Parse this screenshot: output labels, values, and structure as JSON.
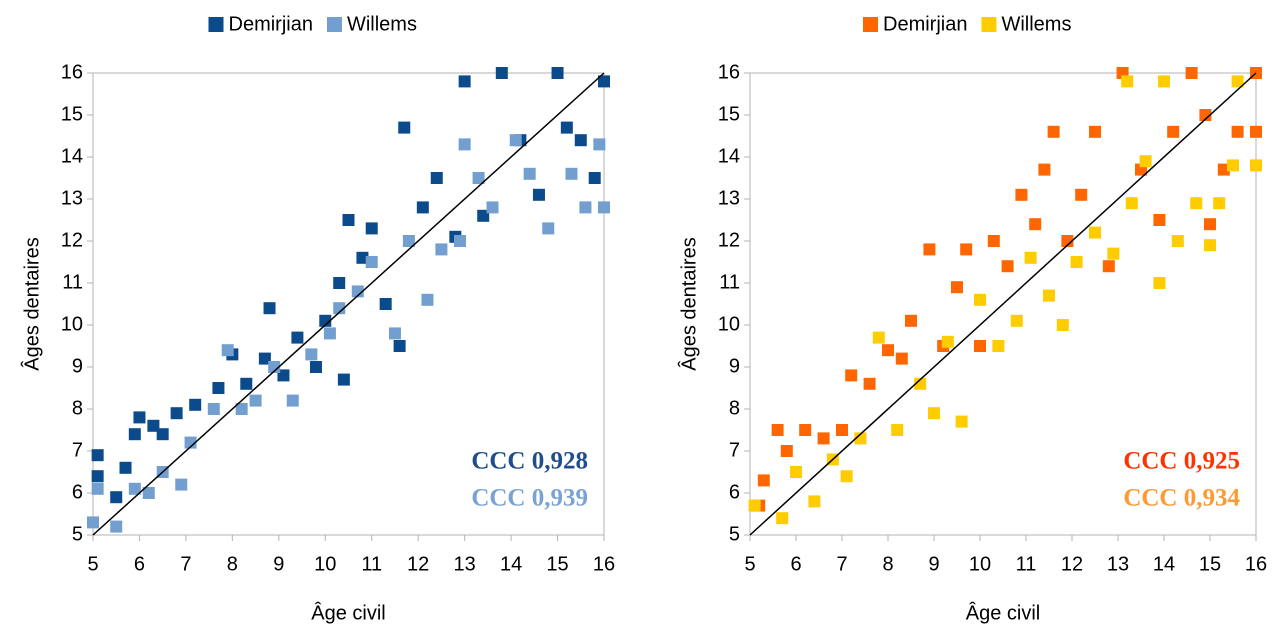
{
  "chart_data": [
    {
      "type": "scatter",
      "x_label": "Âge civil",
      "y_label": "Âges dentaires",
      "xlim": [
        5,
        16
      ],
      "ylim": [
        5,
        16
      ],
      "xticks": [
        5,
        6,
        7,
        8,
        9,
        10,
        11,
        12,
        13,
        14,
        15,
        16
      ],
      "yticks": [
        5,
        6,
        7,
        8,
        9,
        10,
        11,
        12,
        13,
        14,
        15,
        16
      ],
      "annotations": [
        {
          "text": "CCC 0,928",
          "color": "#1f4e8c"
        },
        {
          "text": "CCC 0,939",
          "color": "#7aa3d4"
        }
      ],
      "series": [
        {
          "name": "Demirjian",
          "color": "#0b4a8b",
          "x": [
            5.1,
            5.1,
            5.5,
            5.7,
            5.9,
            6.0,
            6.3,
            6.5,
            6.8,
            7.2,
            7.7,
            8.0,
            8.3,
            8.7,
            8.8,
            9.1,
            9.4,
            9.8,
            10.0,
            10.3,
            10.5,
            10.8,
            11.0,
            11.3,
            11.6,
            11.7,
            12.1,
            12.4,
            12.8,
            13.0,
            13.4,
            13.8,
            14.2,
            14.6,
            15.0,
            15.2,
            15.5,
            15.8,
            16.0,
            10.4
          ],
          "values": [
            6.4,
            6.9,
            5.9,
            6.6,
            7.4,
            7.8,
            7.6,
            7.4,
            7.9,
            8.1,
            8.5,
            9.3,
            8.6,
            9.2,
            10.4,
            8.8,
            9.7,
            9.0,
            10.1,
            11.0,
            12.5,
            11.6,
            12.3,
            10.5,
            9.5,
            14.7,
            12.8,
            13.5,
            12.1,
            15.8,
            12.6,
            16.0,
            14.4,
            13.1,
            16.0,
            14.7,
            14.4,
            13.5,
            15.8,
            8.7
          ]
        },
        {
          "name": "Willems",
          "color": "#729fcf",
          "x": [
            5.0,
            5.1,
            5.5,
            5.9,
            6.2,
            6.5,
            6.9,
            7.1,
            7.6,
            7.9,
            8.2,
            8.5,
            8.9,
            9.3,
            9.7,
            10.1,
            10.3,
            10.7,
            11.0,
            11.5,
            11.8,
            12.2,
            12.5,
            12.9,
            13.3,
            13.6,
            14.1,
            14.4,
            14.8,
            15.3,
            15.6,
            15.9,
            16.0,
            13.0
          ],
          "values": [
            5.3,
            6.1,
            5.2,
            6.1,
            6.0,
            6.5,
            6.2,
            7.2,
            8.0,
            9.4,
            8.0,
            8.2,
            9.0,
            8.2,
            9.3,
            9.8,
            10.4,
            10.8,
            11.5,
            9.8,
            12.0,
            10.6,
            11.8,
            12.0,
            13.5,
            12.8,
            14.4,
            13.6,
            12.3,
            13.6,
            12.8,
            14.3,
            12.8,
            14.3
          ]
        }
      ]
    },
    {
      "type": "scatter",
      "x_label": "Âge civil",
      "y_label": "Âges dentaires",
      "xlim": [
        5,
        16
      ],
      "ylim": [
        5,
        16
      ],
      "xticks": [
        5,
        6,
        7,
        8,
        9,
        10,
        11,
        12,
        13,
        14,
        15,
        16
      ],
      "yticks": [
        5,
        6,
        7,
        8,
        9,
        10,
        11,
        12,
        13,
        14,
        15,
        16
      ],
      "annotations": [
        {
          "text": "CCC 0,925",
          "color": "#ff3300"
        },
        {
          "text": "CCC 0,934",
          "color": "#ff9933"
        }
      ],
      "series": [
        {
          "name": "Demirjian",
          "color": "#ff6600",
          "x": [
            5.2,
            5.3,
            5.6,
            5.8,
            6.2,
            6.6,
            7.0,
            7.2,
            7.6,
            8.0,
            8.3,
            8.5,
            8.9,
            9.2,
            9.5,
            9.7,
            10.0,
            10.3,
            10.6,
            10.9,
            11.2,
            11.4,
            11.6,
            11.9,
            12.2,
            12.5,
            12.8,
            13.1,
            13.5,
            13.9,
            14.2,
            14.6,
            14.9,
            15.3,
            15.6,
            16.0,
            16.0,
            15.0
          ],
          "values": [
            5.7,
            6.3,
            7.5,
            7.0,
            7.5,
            7.3,
            7.5,
            8.8,
            8.6,
            9.4,
            9.2,
            10.1,
            11.8,
            9.5,
            10.9,
            11.8,
            9.5,
            12.0,
            11.4,
            13.1,
            12.4,
            13.7,
            14.6,
            12.0,
            13.1,
            14.6,
            11.4,
            16.0,
            13.7,
            12.5,
            14.6,
            16.0,
            15.0,
            13.7,
            14.6,
            16.0,
            14.6,
            12.4
          ]
        },
        {
          "name": "Willems",
          "color": "#ffcc00",
          "x": [
            5.1,
            5.7,
            6.0,
            6.4,
            6.8,
            7.1,
            7.4,
            7.8,
            8.2,
            8.7,
            9.0,
            9.3,
            9.6,
            10.0,
            10.4,
            10.8,
            11.1,
            11.5,
            11.8,
            12.1,
            12.5,
            12.9,
            13.3,
            13.6,
            13.9,
            14.3,
            14.7,
            15.0,
            15.2,
            15.5,
            16.0,
            13.2,
            14.0,
            15.6
          ],
          "values": [
            5.7,
            5.4,
            6.5,
            5.8,
            6.8,
            6.4,
            7.3,
            9.7,
            7.5,
            8.6,
            7.9,
            9.6,
            7.7,
            10.6,
            9.5,
            10.1,
            11.6,
            10.7,
            10.0,
            11.5,
            12.2,
            11.7,
            12.9,
            13.9,
            11.0,
            12.0,
            12.9,
            11.9,
            12.9,
            13.8,
            13.8,
            15.8,
            15.8,
            15.8
          ]
        }
      ]
    }
  ]
}
